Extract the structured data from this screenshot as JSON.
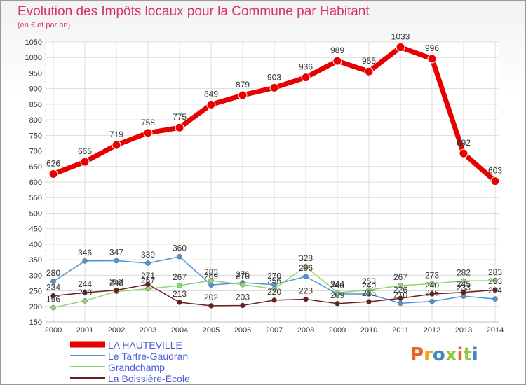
{
  "chart_data": {
    "type": "line",
    "title": "Evolution des Impôts locaux pour la Commune par Habitant",
    "subtitle": "(en € et par an)",
    "x": [
      2000,
      2001,
      2002,
      2003,
      2004,
      2005,
      2006,
      2007,
      2008,
      2009,
      2010,
      2011,
      2012,
      2013,
      2014
    ],
    "ylim": [
      150,
      1050
    ],
    "yticks": [
      150,
      200,
      250,
      300,
      350,
      400,
      450,
      500,
      550,
      600,
      650,
      700,
      750,
      800,
      850,
      900,
      950,
      1000,
      1050
    ],
    "grid": true,
    "legend_position": "bottom-left",
    "series": [
      {
        "name": "LA HAUTEVILLE",
        "color": "#e60000",
        "values": [
          626,
          665,
          719,
          758,
          775,
          849,
          879,
          903,
          936,
          989,
          955,
          1033,
          996,
          692,
          603
        ]
      },
      {
        "name": "Le Tartre-Gaudran",
        "color": "#4f93d1",
        "values": [
          280,
          346,
          347,
          339,
          360,
          269,
          276,
          270,
          296,
          240,
          240,
          210,
          216,
          233,
          224
        ]
      },
      {
        "name": "Grandchamp",
        "color": "#8fd66f",
        "values": [
          196,
          218,
          248,
          257,
          267,
          283,
          270,
          256,
          328,
          244,
          253,
          267,
          273,
          282,
          283
        ]
      },
      {
        "name": "La Boissière-École",
        "color": "#6b1f1f",
        "values": [
          234,
          244,
          252,
          271,
          213,
          202,
          203,
          220,
          223,
          209,
          215,
          226,
          240,
          245,
          253
        ]
      }
    ]
  },
  "brand": {
    "text": "Proxiti",
    "colors": [
      "#e8632c",
      "#f2a31b",
      "#3e86c8",
      "#8fc73e",
      "#e8632c",
      "#8fc73e",
      "#3e86c8"
    ]
  }
}
